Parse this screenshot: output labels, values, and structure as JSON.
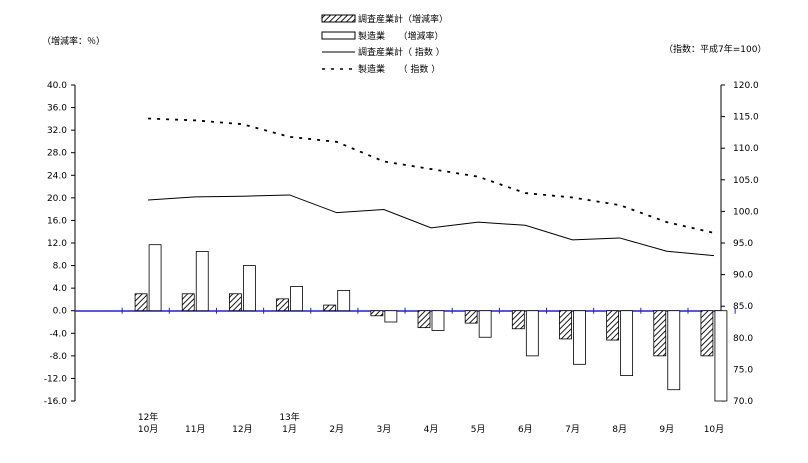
{
  "chart_data": {
    "type": "bar",
    "categories": [
      "10月",
      "11月",
      "12月",
      "1月",
      "2月",
      "3月",
      "4月",
      "5月",
      "6月",
      "7月",
      "8月",
      "9月",
      "10月"
    ],
    "year_labels": [
      {
        "text": "12年",
        "index": 0
      },
      {
        "text": "13年",
        "index": 3
      }
    ],
    "left_axis": {
      "label": "（増減率：％）",
      "ylim": [
        -16,
        40
      ],
      "ticks": [
        "40.0",
        "36.0",
        "32.0",
        "28.0",
        "24.0",
        "20.0",
        "16.0",
        "12.0",
        "8.0",
        "4.0",
        "0.0",
        "-4.0",
        "-8.0",
        "-12.0",
        "-16.0"
      ]
    },
    "right_axis": {
      "label": "（指数：平成7年=100）",
      "ylim": [
        70,
        120
      ],
      "ticks": [
        "120.0",
        "115.0",
        "110.0",
        "105.0",
        "100.0",
        "95.0",
        "90.0",
        "85.0",
        "80.0",
        "75.0",
        "70.0"
      ]
    },
    "legend": [
      {
        "label": "調査産業計（増減率）",
        "kind": "hatched-bar"
      },
      {
        "label": "製造業　　（増減率）",
        "kind": "open-bar"
      },
      {
        "label": "調査産業計（ 指数 ）",
        "kind": "solid-line"
      },
      {
        "label": "製造業　　（ 指数 ）",
        "kind": "dashed-line"
      }
    ],
    "series": [
      {
        "name": "調査産業計（増減率）",
        "axis": "left",
        "values": [
          3.0,
          3.0,
          3.0,
          2.1,
          1.0,
          -0.9,
          -3.0,
          -2.2,
          -3.2,
          -5.0,
          -5.2,
          -8.0,
          -8.0
        ]
      },
      {
        "name": "製造業　　（増減率）",
        "axis": "left",
        "values": [
          11.7,
          10.5,
          8.0,
          4.3,
          3.6,
          -2.0,
          -3.5,
          -4.7,
          -8.0,
          -9.5,
          -11.5,
          -14.0,
          -16.0
        ]
      },
      {
        "name": "調査産業計（ 指数 ）",
        "axis": "right",
        "values": [
          101.8,
          102.3,
          102.4,
          102.6,
          99.8,
          100.3,
          97.4,
          98.3,
          97.8,
          95.5,
          95.8,
          93.7,
          93.0
        ]
      },
      {
        "name": "製造業　　（ 指数 ）",
        "axis": "right",
        "values": [
          114.7,
          114.4,
          113.8,
          111.8,
          111.0,
          107.9,
          106.7,
          105.5,
          102.9,
          102.2,
          101.0,
          98.3,
          96.6
        ]
      }
    ],
    "colors": {
      "axis": "#2222cc",
      "ink": "#000000",
      "open": "#ffffff"
    }
  }
}
